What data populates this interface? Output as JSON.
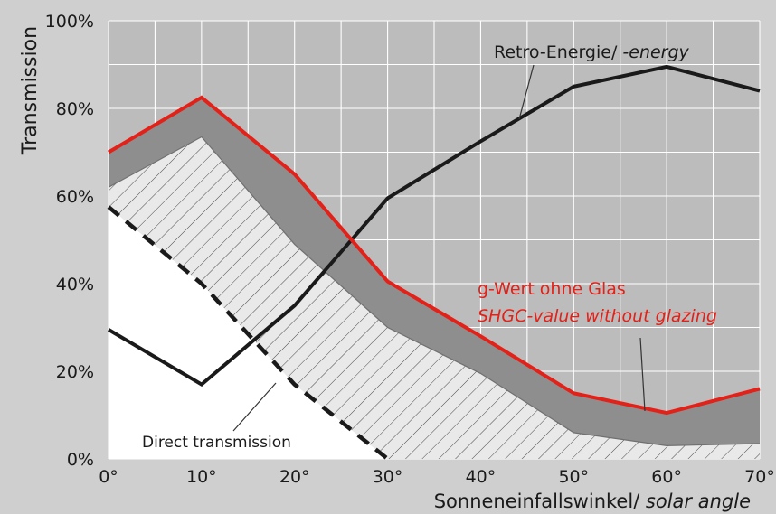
{
  "chart_data": {
    "type": "line",
    "title": "",
    "ylabel": "Transmission",
    "xlabel_main": "Sonneneinfallswinkel/ ",
    "xlabel_italic": "solar angle",
    "x": [
      0,
      10,
      20,
      30,
      40,
      50,
      60,
      70
    ],
    "x_tick_labels": [
      "0°",
      "10°",
      "20°",
      "30°",
      "40°",
      "50°",
      "60°",
      "70°"
    ],
    "y_tick_values": [
      0,
      20,
      40,
      60,
      80,
      100
    ],
    "y_tick_labels": [
      "0%",
      "20%",
      "40%",
      "60%",
      "80%",
      "100%"
    ],
    "xlim": [
      0,
      70
    ],
    "ylim": [
      0,
      100
    ],
    "grid": true,
    "series": [
      {
        "id": "g_value",
        "name": "g-Wert ohne Glas SHGC-value without glazing",
        "color": "#e32119",
        "style": "solid",
        "points": [
          [
            0,
            70
          ],
          [
            10,
            82.5
          ],
          [
            20,
            65
          ],
          [
            30,
            40.5
          ],
          [
            40,
            28
          ],
          [
            50,
            15
          ],
          [
            60,
            10.5
          ],
          [
            70,
            16
          ]
        ]
      },
      {
        "id": "retro",
        "name": "Retro-Energie/ -energy",
        "color": "#1a1a1a",
        "style": "solid",
        "points": [
          [
            0,
            29.5
          ],
          [
            10,
            17
          ],
          [
            20,
            35
          ],
          [
            30,
            59.5
          ],
          [
            40,
            72.5
          ],
          [
            50,
            85
          ],
          [
            60,
            89.5
          ],
          [
            70,
            84
          ]
        ]
      },
      {
        "id": "direct",
        "name": "Direct transmission",
        "color": "#1a1a1a",
        "style": "dashed",
        "points": [
          [
            0,
            57.5
          ],
          [
            10,
            40
          ],
          [
            20,
            17
          ],
          [
            30,
            0
          ]
        ]
      },
      {
        "id": "diffuse_upper",
        "name": "",
        "color": "#707070",
        "style": "thin",
        "points": [
          [
            0,
            62
          ],
          [
            10,
            73.5
          ],
          [
            20,
            49
          ],
          [
            30,
            30
          ],
          [
            40,
            19.5
          ],
          [
            50,
            6
          ],
          [
            60,
            3
          ],
          [
            70,
            3.5
          ]
        ]
      }
    ],
    "annotations": {
      "retro_a": "Retro-Energie/ ",
      "retro_b": "-energy",
      "g_line1": "g-Wert ohne Glas",
      "g_line2": "SHGC-value without glazing",
      "direct": "Direct transmission"
    },
    "colors": {
      "background": "#cfcfcf",
      "plot_area": "#bcbcbc",
      "dark_band": "#8e8e8e",
      "hatch_fill": "#e9e9e9",
      "direct_area": "#ffffff",
      "grid": "#ffffff",
      "accent_red": "#e32119"
    }
  }
}
